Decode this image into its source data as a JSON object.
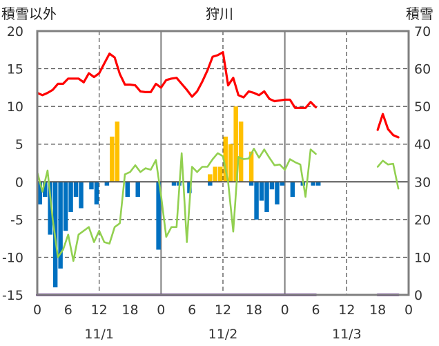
{
  "titles": {
    "left": "積雪以外",
    "center": "狩川",
    "right": "積雪"
  },
  "chart_data": {
    "type": "bar+line",
    "x_unit": "hour",
    "x_range": [
      0,
      72
    ],
    "x_ticks": [
      0,
      6,
      12,
      18,
      24,
      30,
      36,
      42,
      48,
      54,
      60,
      66,
      72
    ],
    "x_tick_labels": [
      "0",
      "6",
      "12",
      "18",
      "0",
      "6",
      "12",
      "18",
      "0",
      "6",
      "12",
      "18",
      "0"
    ],
    "date_labels": [
      {
        "label": "11/1",
        "at": 12
      },
      {
        "label": "11/2",
        "at": 36
      },
      {
        "label": "11/3",
        "at": 60
      }
    ],
    "solid_gridlines_x": [
      24,
      48
    ],
    "dashed_gridlines_x": [
      12,
      36,
      60
    ],
    "dashed_gridlines_y": [
      -10,
      -5,
      5,
      10,
      15
    ],
    "left_axis": {
      "min": -15,
      "max": 20,
      "ticks": [
        -15,
        -10,
        -5,
        0,
        5,
        10,
        15,
        20
      ]
    },
    "right_axis": {
      "min": 0,
      "max": 70,
      "ticks": [
        0,
        10,
        20,
        30,
        40,
        50,
        60,
        70
      ]
    },
    "colors": {
      "precipitation": "#ffc000",
      "temperature_drop": "#0070c0",
      "red_line": "#ff0000",
      "green_line": "#92d050",
      "snow_depth": "#7030a0",
      "frame": "#7f7f7f",
      "zero_line": "#555555"
    },
    "series": [
      {
        "kind": "bar",
        "axis": "left",
        "color_key": "precipitation",
        "points": [
          [
            14,
            6
          ],
          [
            15,
            8
          ],
          [
            33,
            1
          ],
          [
            34,
            2
          ],
          [
            35,
            2
          ],
          [
            36,
            6
          ],
          [
            37,
            5
          ],
          [
            38,
            10
          ],
          [
            39,
            8
          ],
          [
            41,
            4
          ]
        ]
      },
      {
        "kind": "bar",
        "axis": "left",
        "color_key": "temperature_drop",
        "points": [
          [
            0,
            -3
          ],
          [
            1,
            -2
          ],
          [
            2,
            -7
          ],
          [
            3,
            -14
          ],
          [
            4,
            -11.5
          ],
          [
            5,
            -6.5
          ],
          [
            6,
            -4
          ],
          [
            7,
            -2
          ],
          [
            8,
            -3.5
          ],
          [
            10,
            -1
          ],
          [
            11,
            -3
          ],
          [
            13,
            -0.5
          ],
          [
            17,
            -2
          ],
          [
            19,
            -2
          ],
          [
            23,
            -9
          ],
          [
            26,
            -0.5
          ],
          [
            27,
            -0.5
          ],
          [
            29,
            -1.5
          ],
          [
            33,
            -0.5
          ],
          [
            41,
            -0.5
          ],
          [
            42,
            -5
          ],
          [
            43,
            -2.5
          ],
          [
            44,
            -4
          ],
          [
            45,
            -1
          ],
          [
            46,
            -3
          ],
          [
            47,
            -0.5
          ],
          [
            49,
            -2
          ],
          [
            51,
            -0.5
          ],
          [
            53,
            -0.5
          ],
          [
            54,
            -0.5
          ]
        ]
      },
      {
        "kind": "line",
        "axis": "left",
        "color_key": "red_line",
        "segments": [
          [
            [
              0,
              11.8
            ],
            [
              1,
              11.5
            ],
            [
              2,
              11.8
            ],
            [
              3,
              12.2
            ],
            [
              4,
              13
            ],
            [
              5,
              13
            ],
            [
              6,
              13.7
            ],
            [
              7,
              13.7
            ],
            [
              8,
              13.7
            ],
            [
              9,
              13.2
            ],
            [
              10,
              14.4
            ],
            [
              11,
              13.9
            ],
            [
              12,
              14.4
            ],
            [
              13,
              15.7
            ],
            [
              14,
              17
            ],
            [
              15,
              16.5
            ],
            [
              16,
              14.3
            ],
            [
              17,
              12.9
            ],
            [
              18,
              12.9
            ],
            [
              19,
              12.8
            ],
            [
              20,
              12
            ],
            [
              21,
              11.9
            ],
            [
              22,
              11.9
            ],
            [
              23,
              13
            ],
            [
              24,
              12.5
            ],
            [
              25,
              13.5
            ],
            [
              26,
              13.7
            ],
            [
              27,
              13.8
            ],
            [
              28,
              13
            ],
            [
              29,
              12.2
            ],
            [
              30,
              11.3
            ],
            [
              31,
              12
            ],
            [
              32,
              13.3
            ],
            [
              33,
              14.8
            ],
            [
              34,
              16.6
            ],
            [
              35,
              16.8
            ],
            [
              36,
              17.2
            ],
            [
              37,
              12.8
            ],
            [
              38,
              13.8
            ],
            [
              39,
              11.5
            ],
            [
              40,
              11.2
            ],
            [
              41,
              12
            ],
            [
              42,
              11.8
            ],
            [
              43,
              11.5
            ],
            [
              44,
              12
            ],
            [
              45,
              11
            ],
            [
              46,
              10.7
            ],
            [
              47,
              10.8
            ],
            [
              48,
              10.9
            ],
            [
              49,
              10.9
            ],
            [
              50,
              9.8
            ],
            [
              51,
              9.8
            ],
            [
              52,
              9.8
            ],
            [
              53,
              10.6
            ],
            [
              54,
              9.9
            ]
          ],
          [
            [
              66,
              6.9
            ],
            [
              67,
              9
            ],
            [
              68,
              7
            ],
            [
              69,
              6.2
            ],
            [
              70,
              5.9
            ]
          ]
        ]
      },
      {
        "kind": "line",
        "axis": "left",
        "color_key": "green_line",
        "segments": [
          [
            [
              0,
              1.3
            ],
            [
              1,
              -1.3
            ],
            [
              2,
              1.5
            ],
            [
              3,
              -5
            ],
            [
              4,
              -10
            ],
            [
              5,
              -9
            ],
            [
              6,
              -7
            ],
            [
              7,
              -10.5
            ],
            [
              8,
              -7
            ],
            [
              9,
              -6.5
            ],
            [
              10,
              -6
            ],
            [
              11,
              -8
            ],
            [
              12,
              -6.5
            ],
            [
              13,
              -8
            ],
            [
              14,
              -8.2
            ],
            [
              15,
              -6
            ],
            [
              16,
              -5.5
            ],
            [
              17,
              1
            ],
            [
              18,
              1.3
            ],
            [
              19,
              2.2
            ],
            [
              20,
              1.3
            ],
            [
              21,
              1.8
            ],
            [
              22,
              1.6
            ],
            [
              23,
              2.9
            ],
            [
              24,
              -1.8
            ],
            [
              25,
              -7.3
            ],
            [
              26,
              -6
            ],
            [
              27,
              -6
            ],
            [
              28,
              3.8
            ],
            [
              29,
              -8
            ],
            [
              30,
              2
            ],
            [
              31,
              1.3
            ],
            [
              32,
              2
            ],
            [
              33,
              2
            ],
            [
              34,
              3
            ],
            [
              35,
              3.8
            ],
            [
              36,
              3.4
            ],
            [
              37,
              0
            ],
            [
              38,
              -6.6
            ],
            [
              39,
              3.3
            ],
            [
              40,
              3
            ],
            [
              41,
              3.1
            ],
            [
              42,
              4.4
            ],
            [
              43,
              3.2
            ],
            [
              44,
              4.3
            ],
            [
              45,
              3.2
            ],
            [
              46,
              2.2
            ],
            [
              47,
              2.3
            ],
            [
              48,
              1.6
            ],
            [
              49,
              3
            ],
            [
              50,
              2.6
            ],
            [
              51,
              2.3
            ],
            [
              52,
              -2
            ],
            [
              53,
              4.3
            ],
            [
              54,
              3.7
            ]
          ],
          [
            [
              66,
              2
            ],
            [
              67,
              2.8
            ],
            [
              68,
              2.3
            ],
            [
              69,
              2.4
            ],
            [
              70,
              -0.9
            ]
          ]
        ]
      },
      {
        "kind": "line",
        "axis": "right",
        "color_key": "snow_depth",
        "segments": [
          [
            [
              0,
              0
            ],
            [
              54,
              0
            ]
          ],
          [
            [
              66,
              0
            ],
            [
              70,
              0
            ]
          ]
        ]
      }
    ]
  }
}
